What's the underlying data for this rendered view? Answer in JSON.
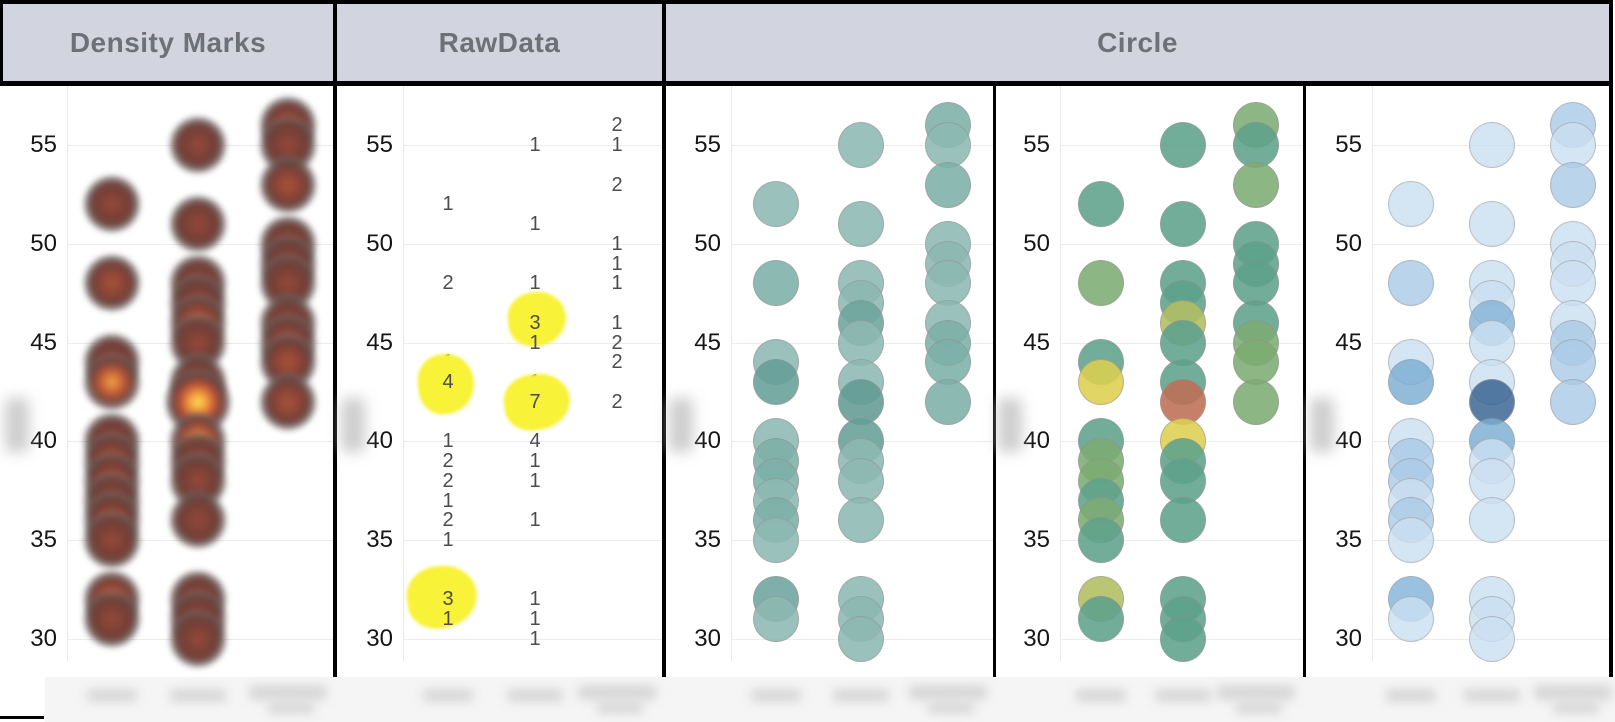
{
  "header": {
    "cells": [
      "Density Marks",
      "RawData",
      "Circle"
    ]
  },
  "y_axis": {
    "ticks": [
      "55",
      "50",
      "45",
      "40",
      "35",
      "30"
    ]
  },
  "chart_data": {
    "type": "scatter",
    "title": "",
    "panel_titles": [
      "Density Marks",
      "RawData",
      "Circle"
    ],
    "panel_types": [
      "density-heat",
      "rawdata-counts",
      "circle-teal",
      "circle-green-yellow-red",
      "circle-blue"
    ],
    "y_ticks": [
      55,
      50,
      45,
      40,
      35,
      30
    ],
    "y_range": [
      28,
      58
    ],
    "grid": true,
    "categories": [
      "[blurred]",
      "[blurred]",
      "[blurred]"
    ],
    "series": [
      {
        "category_index": 0,
        "points": [
          {
            "y": 52,
            "count": 1
          },
          {
            "y": 48,
            "count": 2
          },
          {
            "y": 44,
            "count": 1
          },
          {
            "y": 43,
            "count": 4,
            "highlighted": true
          },
          {
            "y": 40,
            "count": 1
          },
          {
            "y": 39,
            "count": 2
          },
          {
            "y": 38,
            "count": 2
          },
          {
            "y": 37,
            "count": 1
          },
          {
            "y": 36,
            "count": 2
          },
          {
            "y": 35,
            "count": 1
          },
          {
            "y": 32,
            "count": 3,
            "highlighted": true
          },
          {
            "y": 31,
            "count": 1
          }
        ]
      },
      {
        "category_index": 1,
        "points": [
          {
            "y": 55,
            "count": 1
          },
          {
            "y": 51,
            "count": 1
          },
          {
            "y": 48,
            "count": 1
          },
          {
            "y": 47,
            "count": 1
          },
          {
            "y": 46,
            "count": 3,
            "highlighted": true
          },
          {
            "y": 45,
            "count": 1
          },
          {
            "y": 43,
            "count": 1
          },
          {
            "y": 42,
            "count": 7,
            "highlighted": true
          },
          {
            "y": 40,
            "count": 4
          },
          {
            "y": 39,
            "count": 1
          },
          {
            "y": 38,
            "count": 1
          },
          {
            "y": 36,
            "count": 1
          },
          {
            "y": 32,
            "count": 1
          },
          {
            "y": 31,
            "count": 1
          },
          {
            "y": 30,
            "count": 1
          }
        ]
      },
      {
        "category_index": 2,
        "points": [
          {
            "y": 56,
            "count": 2
          },
          {
            "y": 55,
            "count": 1
          },
          {
            "y": 53,
            "count": 2
          },
          {
            "y": 50,
            "count": 1
          },
          {
            "y": 49,
            "count": 1
          },
          {
            "y": 48,
            "count": 1
          },
          {
            "y": 46,
            "count": 1
          },
          {
            "y": 45,
            "count": 2
          },
          {
            "y": 44,
            "count": 2
          },
          {
            "y": 42,
            "count": 2
          }
        ]
      }
    ]
  },
  "colors": {
    "header_bg": "#d2d5e0",
    "header_text": "#6d7077",
    "border": "#000000",
    "gridline": "#ececec",
    "raw_number": "#4c4c4c",
    "highlight": "#f8f239",
    "teal_scale": {
      "1": "#8db9b2",
      "2": "#7db0a8",
      "3": "#6da59d",
      "4": "#65a098",
      "7": "#629b94"
    },
    "green_scale": {
      "1": "#5ea28c",
      "2": "#7dac73",
      "3": "#b2bf63",
      "4": "#ddd051",
      "7": "#bf6f55"
    },
    "blue_scale": {
      "1": "#cbe0f1",
      "2": "#abcbe7",
      "3": "#85b4d9",
      "4": "#7cadd3",
      "7": "#35618f"
    }
  },
  "redactions": {
    "x_axis_category_labels": "blurred",
    "y_axis_titles": "blurred"
  }
}
